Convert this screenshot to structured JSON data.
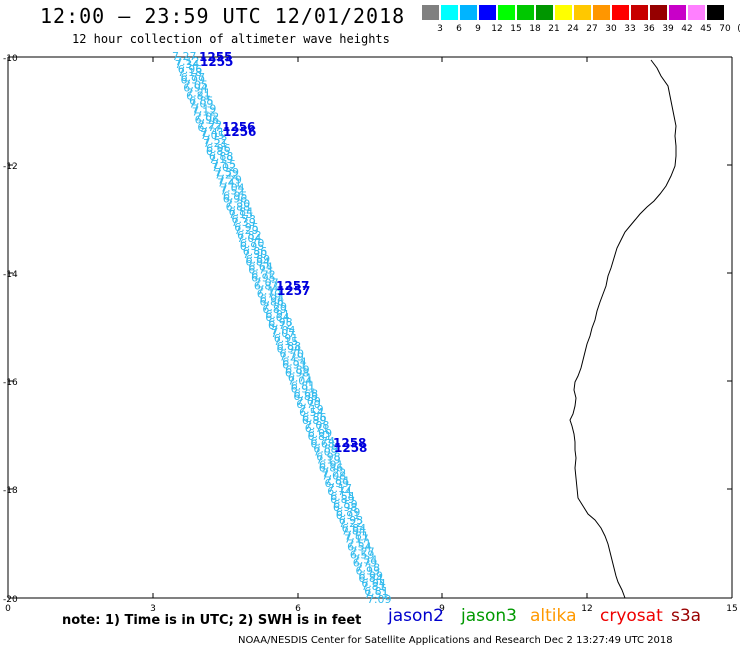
{
  "title": "12:00 – 23:59 UTC 12/01/2018",
  "subtitle": "12 hour collection of altimeter wave heights",
  "legend": {
    "colors": [
      "#808080",
      "#00ffff",
      "#00b4ff",
      "#0000ff",
      "#00ff00",
      "#00c800",
      "#009600",
      "#ffff00",
      "#ffc800",
      "#ff9600",
      "#ff0000",
      "#c80000",
      "#960000",
      "#c800c8",
      "#ff80ff",
      "#000000"
    ],
    "levels": [
      "3",
      "6",
      "9",
      "12",
      "15",
      "18",
      "21",
      "24",
      "27",
      "30",
      "33",
      "36",
      "39",
      "42",
      "45",
      "70",
      "(ft)"
    ]
  },
  "axes": {
    "y_labels": [
      "-10",
      "-12",
      "-14",
      "-16",
      "-18",
      "-20"
    ],
    "x_labels": [
      "0",
      "3",
      "6",
      "9",
      "12",
      "15"
    ]
  },
  "track": {
    "color": "#33bbee",
    "heights": [
      "7.27",
      "7.34",
      "7.18",
      "6.99",
      "6.94",
      "6.81",
      "7.09",
      "7.12",
      "6.96",
      "6.77",
      "7.05",
      "7.21",
      "6.85",
      "7.19",
      "7.02",
      "7.22",
      "7.41",
      "7.52",
      "6.96",
      "6.88",
      "7.15",
      "7.39",
      "7.29",
      "7.04",
      "6.95",
      "7.30",
      "6.84",
      "6.73",
      "6.95",
      "6.82",
      "6.70",
      "6.86",
      "6.89",
      "6.64",
      "6.72",
      "7.07",
      "7.15",
      "6.94",
      "7.29",
      "6.91",
      "6.98",
      "7.04",
      "6.91",
      "6.88",
      "6.70",
      "6.54",
      "6.89",
      "6.71",
      "6.81",
      "6.68",
      "7.09",
      "7.19",
      "6.86",
      "7.08",
      "6.99",
      "6.74",
      "6.89",
      "6.98",
      "6.91",
      "7.22",
      "7.84",
      "7.17",
      "6.54",
      "6.59",
      "6.79",
      "6.93",
      "6.84",
      "7.81",
      "7.51"
    ]
  },
  "times": [
    {
      "label": "1255"
    },
    {
      "label": "1256"
    },
    {
      "label": "1257"
    },
    {
      "label": "1258"
    }
  ],
  "note": "note: 1) Time is in UTC; 2) SWH is in feet",
  "satellites": [
    {
      "name": "jason2",
      "color": "#0000cc"
    },
    {
      "name": "jason3",
      "color": "#009900"
    },
    {
      "name": "altika",
      "color": "#ff9900"
    },
    {
      "name": "cryosat",
      "color": "#ee0000"
    },
    {
      "name": "s3a",
      "color": "#990000"
    }
  ],
  "footer": "NOAA/NESDIS Center for Satellite Applications and Research     Dec  2 13:27:49 UTC 2018"
}
